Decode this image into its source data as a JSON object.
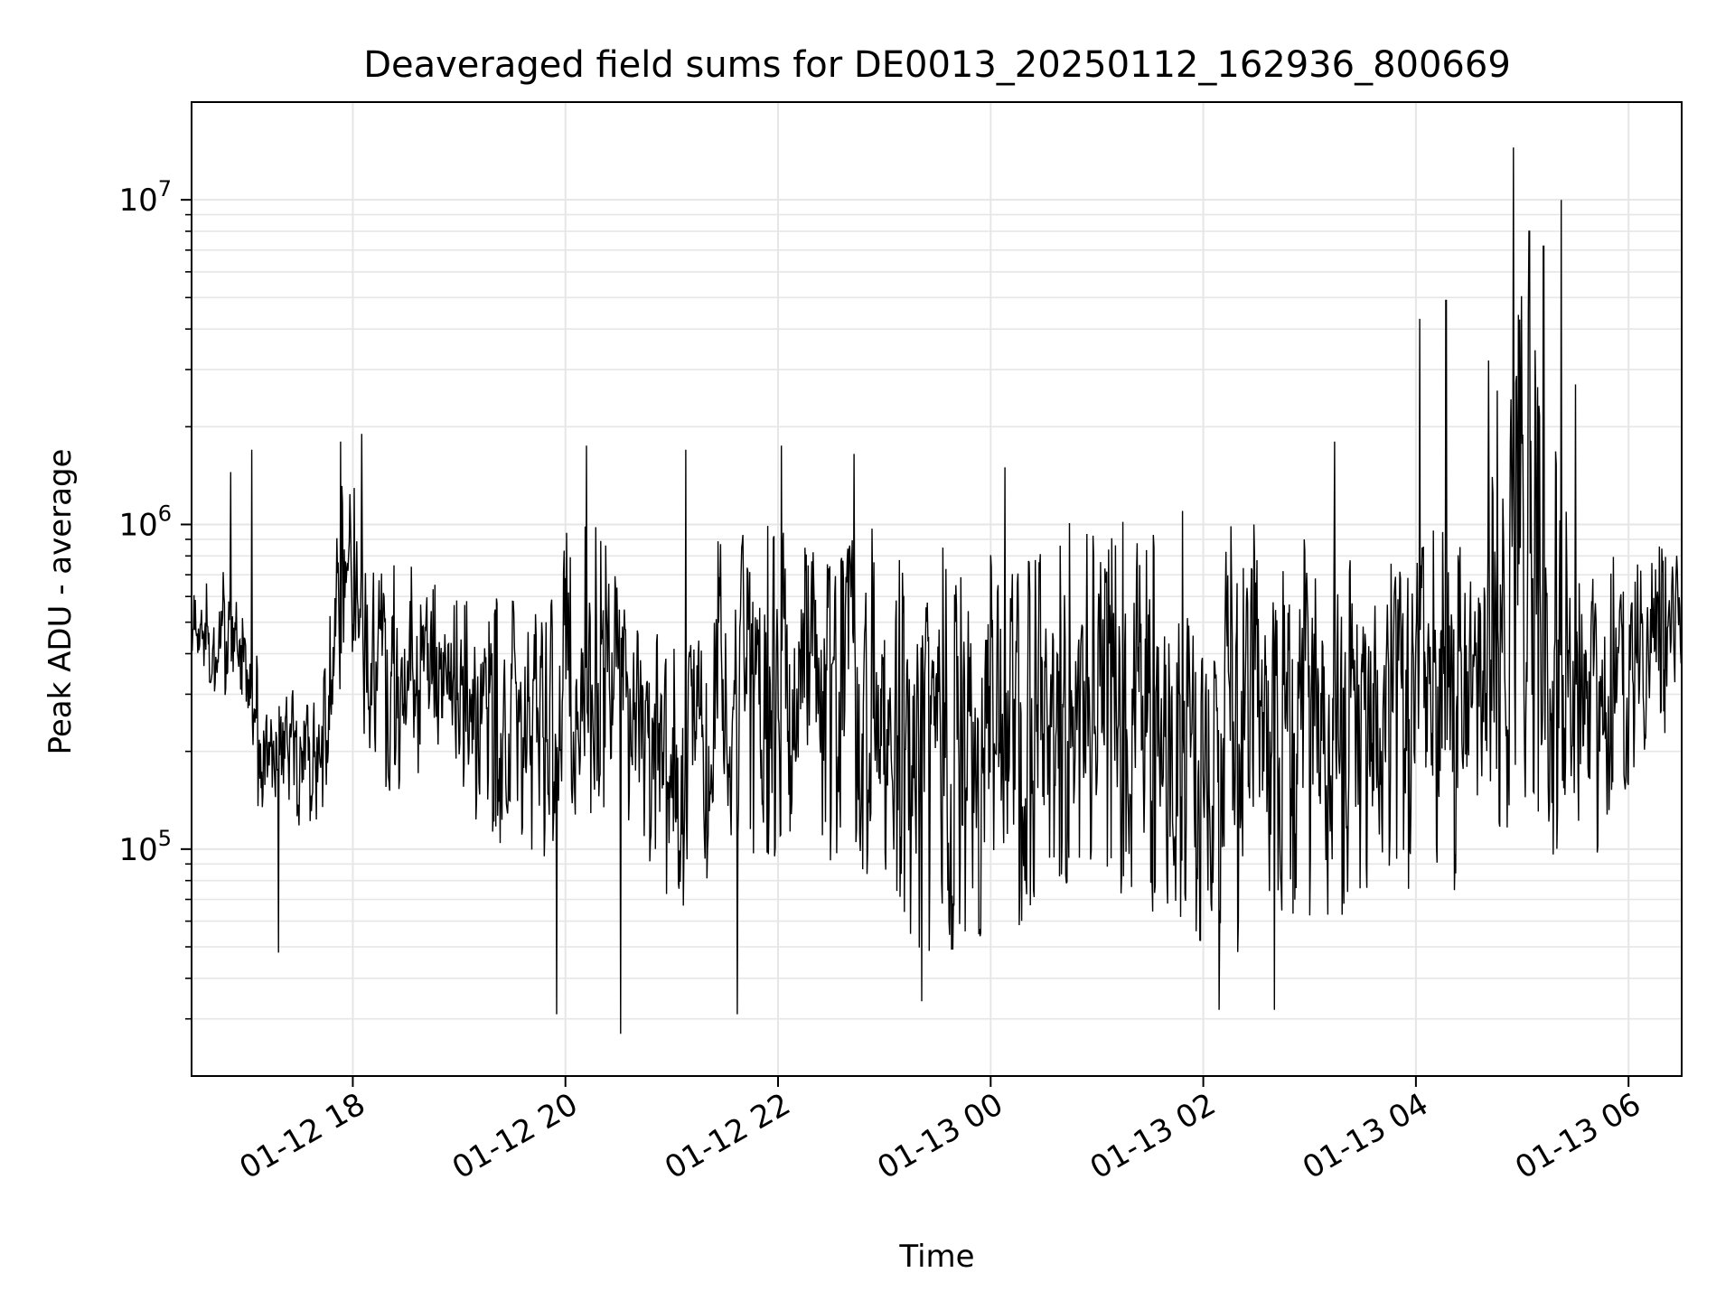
{
  "chart_data": {
    "type": "line",
    "title": "Deaveraged field sums for DE0013_20250112_162936_800669",
    "xlabel": "Time",
    "ylabel": "Peak ADU - average",
    "yscale": "log",
    "ylim": [
      20000,
      20000000
    ],
    "xlim": [
      "2025-01-12 16:29",
      "2025-01-13 06:30"
    ],
    "x_ticks": [
      "2025-01-12 18:00",
      "2025-01-12 20:00",
      "2025-01-12 22:00",
      "2025-01-13 00:00",
      "2025-01-13 02:00",
      "2025-01-13 04:00",
      "2025-01-13 06:00"
    ],
    "x_tick_labels": [
      "01-12 18",
      "01-12 20",
      "01-12 22",
      "01-13 00",
      "01-13 02",
      "01-13 04",
      "01-13 06"
    ],
    "y_ticks": [
      100000,
      1000000,
      10000000
    ],
    "y_tick_labels": [
      {
        "base": "10",
        "exp": "5"
      },
      {
        "base": "10",
        "exp": "6"
      },
      {
        "base": "10",
        "exp": "7"
      }
    ],
    "grid": true,
    "line_color": "#000000",
    "series": [
      {
        "profile_low": [
          [
            "2025-01-12 16:29",
            380000
          ],
          [
            "2025-01-12 16:50",
            260000
          ],
          [
            "2025-01-12 17:10",
            110000
          ],
          [
            "2025-01-12 17:30",
            110000
          ],
          [
            "2025-01-12 17:45",
            120000
          ],
          [
            "2025-01-12 17:55",
            400000
          ],
          [
            "2025-01-12 18:10",
            150000
          ],
          [
            "2025-01-12 19:00",
            140000
          ],
          [
            "2025-01-12 19:40",
            80000
          ],
          [
            "2025-01-12 20:10",
            130000
          ],
          [
            "2025-01-12 20:40",
            110000
          ],
          [
            "2025-01-12 21:00",
            60000
          ],
          [
            "2025-01-12 21:30",
            90000
          ],
          [
            "2025-01-12 22:00",
            90000
          ],
          [
            "2025-01-12 23:00",
            80000
          ],
          [
            "2025-01-12 23:20",
            45000
          ],
          [
            "2025-01-13 00:20",
            50000
          ],
          [
            "2025-01-13 00:50",
            80000
          ],
          [
            "2025-01-13 01:20",
            70000
          ],
          [
            "2025-01-13 01:35",
            45000
          ],
          [
            "2025-01-13 02:30",
            45000
          ],
          [
            "2025-01-13 02:50",
            55000
          ],
          [
            "2025-01-13 03:30",
            65000
          ],
          [
            "2025-01-13 04:00",
            75000
          ],
          [
            "2025-01-13 04:30",
            70000
          ],
          [
            "2025-01-13 05:00",
            90000
          ],
          [
            "2025-01-13 05:30",
            70000
          ],
          [
            "2025-01-13 06:00",
            150000
          ],
          [
            "2025-01-13 06:30",
            270000
          ]
        ],
        "profile_high": [
          [
            "2025-01-12 16:29",
            600000
          ],
          [
            "2025-01-12 16:50",
            800000
          ],
          [
            "2025-01-12 17:10",
            350000
          ],
          [
            "2025-01-12 17:30",
            350000
          ],
          [
            "2025-01-12 17:45",
            400000
          ],
          [
            "2025-01-12 17:55",
            1800000
          ],
          [
            "2025-01-12 18:10",
            900000
          ],
          [
            "2025-01-12 19:00",
            600000
          ],
          [
            "2025-01-12 19:40",
            600000
          ],
          [
            "2025-01-12 20:10",
            1300000
          ],
          [
            "2025-01-12 20:40",
            650000
          ],
          [
            "2025-01-12 21:00",
            400000
          ],
          [
            "2025-01-12 21:30",
            1000000
          ],
          [
            "2025-01-12 22:00",
            1000000
          ],
          [
            "2025-01-12 23:00",
            1000000
          ],
          [
            "2025-01-12 23:20",
            800000
          ],
          [
            "2025-01-13 00:20",
            1100000
          ],
          [
            "2025-01-13 00:50",
            1000000
          ],
          [
            "2025-01-13 01:20",
            1050000
          ],
          [
            "2025-01-13 01:35",
            1100000
          ],
          [
            "2025-01-13 02:30",
            1150000
          ],
          [
            "2025-01-13 02:50",
            1100000
          ],
          [
            "2025-01-13 03:30",
            900000
          ],
          [
            "2025-01-13 04:00",
            1100000
          ],
          [
            "2025-01-13 04:30",
            1000000
          ],
          [
            "2025-01-13 05:00",
            6000000
          ],
          [
            "2025-01-13 05:30",
            900000
          ],
          [
            "2025-01-13 06:00",
            800000
          ],
          [
            "2025-01-13 06:30",
            900000
          ]
        ],
        "notable_points": [
          [
            "2025-01-12 16:51",
            1450000
          ],
          [
            "2025-01-12 17:03",
            1700000
          ],
          [
            "2025-01-12 17:53",
            1800000
          ],
          [
            "2025-01-12 18:05",
            1900000
          ],
          [
            "2025-01-12 20:12",
            1750000
          ],
          [
            "2025-01-12 21:08",
            1700000
          ],
          [
            "2025-01-12 22:02",
            1750000
          ],
          [
            "2025-01-12 22:43",
            1650000
          ],
          [
            "2025-01-13 00:08",
            1500000
          ],
          [
            "2025-01-13 03:14",
            1800000
          ],
          [
            "2025-01-13 04:02",
            4300000
          ],
          [
            "2025-01-13 04:17",
            4900000
          ],
          [
            "2025-01-13 04:41",
            3200000
          ],
          [
            "2025-01-13 04:55",
            14500000
          ],
          [
            "2025-01-13 05:04",
            8000000
          ],
          [
            "2025-01-13 05:12",
            7200000
          ],
          [
            "2025-01-13 05:22",
            10000000
          ],
          [
            "2025-01-13 05:30",
            2700000
          ],
          [
            "2025-01-12 20:31",
            27000
          ],
          [
            "2025-01-12 19:55",
            31000
          ],
          [
            "2025-01-12 21:37",
            31000
          ],
          [
            "2025-01-13 02:09",
            32000
          ],
          [
            "2025-01-13 02:40",
            32000
          ],
          [
            "2025-01-12 17:18",
            48000
          ],
          [
            "2025-01-12 23:21",
            34000
          ]
        ]
      }
    ]
  }
}
